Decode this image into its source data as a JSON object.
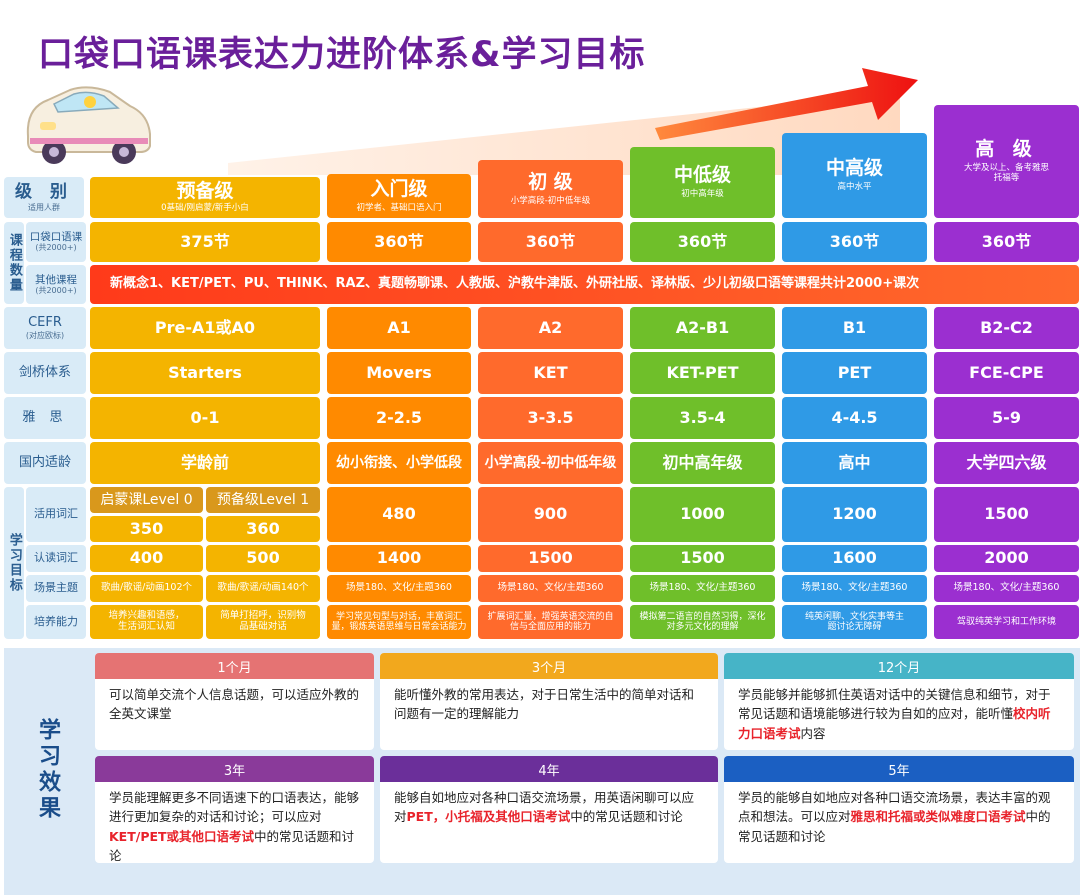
{
  "title": "口袋口语课表达力进阶体系&学习目标",
  "colors": {
    "pre": "#f4b400",
    "entry": "#ff8a00",
    "elementary": "#ff6a2c",
    "lower_mid": "#6fbf2a",
    "upper_mid": "#2f9ae6",
    "advanced": "#9b2fd0",
    "other_courses_bar": "#ff4a1c",
    "label_bg": "#d9ebf7"
  },
  "labels": {
    "level": "级 别",
    "level_sub": "适用人群",
    "course_count": "课程数量",
    "kd_course": "口袋口语课",
    "kd_course_sub": "(共2000+)",
    "other_course": "其他课程",
    "other_course_sub": "(共2000+)",
    "cefr": "CEFR",
    "cefr_sub": "(对应欧标)",
    "cambridge": "剑桥体系",
    "ielts": "雅 思",
    "age": "国内适龄",
    "study_goal": "学习目标",
    "active_vocab": "活用词汇",
    "read_vocab": "认读词汇",
    "scenes": "场景主题",
    "ability": "培养能力"
  },
  "levels": [
    {
      "name": "预备级",
      "sub": "0基础/刚启蒙/新手小白",
      "lessons": "375节",
      "cefr": "Pre-A1或A0",
      "cambridge": "Starters",
      "ielts": "0-1",
      "age": "学龄前",
      "active_vocab": "",
      "read_vocab": "",
      "scenes": "",
      "ability": ""
    },
    {
      "name": "入门级",
      "sub": "初学者、基础口语入门",
      "lessons": "360节",
      "cefr": "A1",
      "cambridge": "Movers",
      "ielts": "2-2.5",
      "age": "幼小衔接、小学低段",
      "active_vocab": "480",
      "read_vocab": "1400",
      "scenes": "场景180、文化/主题360",
      "ability": "学习常见句型与对话，丰富词汇量，锻炼英语思维与日常会话能力"
    },
    {
      "name": "初 级",
      "sub": "小学高段-初中低年级",
      "lessons": "360节",
      "cefr": "A2",
      "cambridge": "KET",
      "ielts": "3-3.5",
      "age": "小学高段-初中低年级",
      "active_vocab": "900",
      "read_vocab": "1500",
      "scenes": "场景180、文化/主题360",
      "ability": "扩展词汇量，增强英语交流的自信与全面应用的能力"
    },
    {
      "name": "中低级",
      "sub": "初中高年级",
      "lessons": "360节",
      "cefr": "A2-B1",
      "cambridge": "KET-PET",
      "ielts": "3.5-4",
      "age": "初中高年级",
      "active_vocab": "1000",
      "read_vocab": "1500",
      "scenes": "场景180、文化/主题360",
      "ability": "模拟第二语言的自然习得，深化对多元文化的理解"
    },
    {
      "name": "中高级",
      "sub": "高中水平",
      "lessons": "360节",
      "cefr": "B1",
      "cambridge": "PET",
      "ielts": "4-4.5",
      "age": "高中",
      "active_vocab": "1200",
      "read_vocab": "1600",
      "scenes": "场景180、文化/主题360",
      "ability": "纯英闲聊、文化实事等主题讨论无障碍"
    },
    {
      "name": "高 级",
      "sub": "大学及以上、备考雅思托福等",
      "lessons": "360节",
      "cefr": "B2-C2",
      "cambridge": "FCE-CPE",
      "ielts": "5-9",
      "age": "大学四六级",
      "active_vocab": "1500",
      "read_vocab": "2000",
      "scenes": "场景180、文化/主题360",
      "ability": "驾驭纯英学习和工作环境"
    }
  ],
  "pre_split": [
    {
      "name": "启蒙课Level 0",
      "active_vocab": "350",
      "read_vocab": "400",
      "scenes": "歌曲/歌谣/动画102个",
      "ability": "培养兴趣和语感，生活词汇认知"
    },
    {
      "name": "预备级Level 1",
      "active_vocab": "360",
      "read_vocab": "500",
      "scenes": "歌曲/歌谣/动画140个",
      "ability": "简单打招呼，识别物品基础对话"
    }
  ],
  "other_courses": "新概念1、KET/PET、PU、THINK、RAZ、真题畅聊课、人教版、沪教牛津版、外研社版、译林版、少儿初级口语等课程共计2000+课次",
  "effects": {
    "label": "学习效果",
    "items": [
      {
        "period": "1个月",
        "text": "可以简单交流个人信息话题，可以适应外教的全英文课堂",
        "color": "#e57373"
      },
      {
        "period": "3个月",
        "text": "能听懂外教的常用表达，对于日常生活中的简单对话和问题有一定的理解能力",
        "color": "#f2a81d"
      },
      {
        "period": "12个月",
        "text_a": "学员能够并能够抓住英语对话中的关键信息和细节，对于常见话题和语境能够进行较为自如的应对，能听懂",
        "text_hl": "校内听力口语考试",
        "text_b": "内容",
        "color": "#46b4c7"
      },
      {
        "period": "3年",
        "text_a": "学员能理解更多不同语速下的口语表达，能够进行更加复杂的对话和讨论；可以应对",
        "text_hl": "KET/PET或其他口语考试",
        "text_b": "中的常见话题和讨论",
        "color": "#8a3a9a"
      },
      {
        "period": "4年",
        "text_a": "能够自如地应对各种口语交流场景，用英语闲聊可以应对",
        "text_hl": "PET，小托福及其他口语考试",
        "text_b": "中的常见话题和讨论",
        "color": "#6b2f9a"
      },
      {
        "period": "5年",
        "text_a": "学员的能够自如地应对各种口语交流场景，表达丰富的观点和想法。可以应对",
        "text_hl": "雅思和托福或类似难度口语考试",
        "text_b": "中的常见话题和讨论",
        "color": "#1b5fc2"
      }
    ]
  }
}
